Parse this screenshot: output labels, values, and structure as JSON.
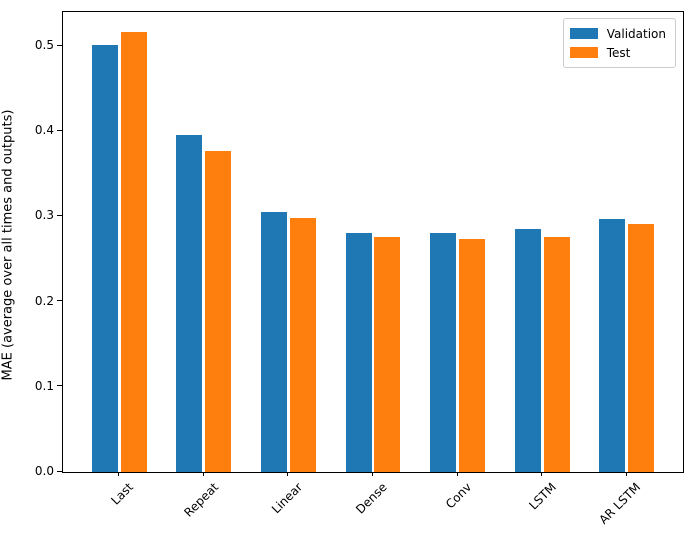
{
  "chart_data": {
    "type": "bar",
    "title": "",
    "xlabel": "",
    "ylabel": "MAE (average over all times and outputs)",
    "categories": [
      "Last",
      "Repeat",
      "Linear",
      "Dense",
      "Conv",
      "LSTM",
      "AR LSTM"
    ],
    "series": [
      {
        "name": "Validation",
        "color": "#1f77b4",
        "values": [
          0.501,
          0.396,
          0.305,
          0.281,
          0.28,
          0.285,
          0.297
        ]
      },
      {
        "name": "Test",
        "color": "#ff7f0e",
        "values": [
          0.516,
          0.377,
          0.298,
          0.276,
          0.274,
          0.276,
          0.291
        ]
      }
    ],
    "ylim": [
      0,
      0.54
    ],
    "yticks": [
      0.0,
      0.1,
      0.2,
      0.3,
      0.4,
      0.5
    ],
    "ytick_labels": [
      "0.0",
      "0.1",
      "0.2",
      "0.3",
      "0.4",
      "0.5"
    ],
    "xtick_rotation": 45,
    "grid": false,
    "legend_position": "upper right",
    "background_color": "#ffffff",
    "axis_color": "#000000"
  }
}
